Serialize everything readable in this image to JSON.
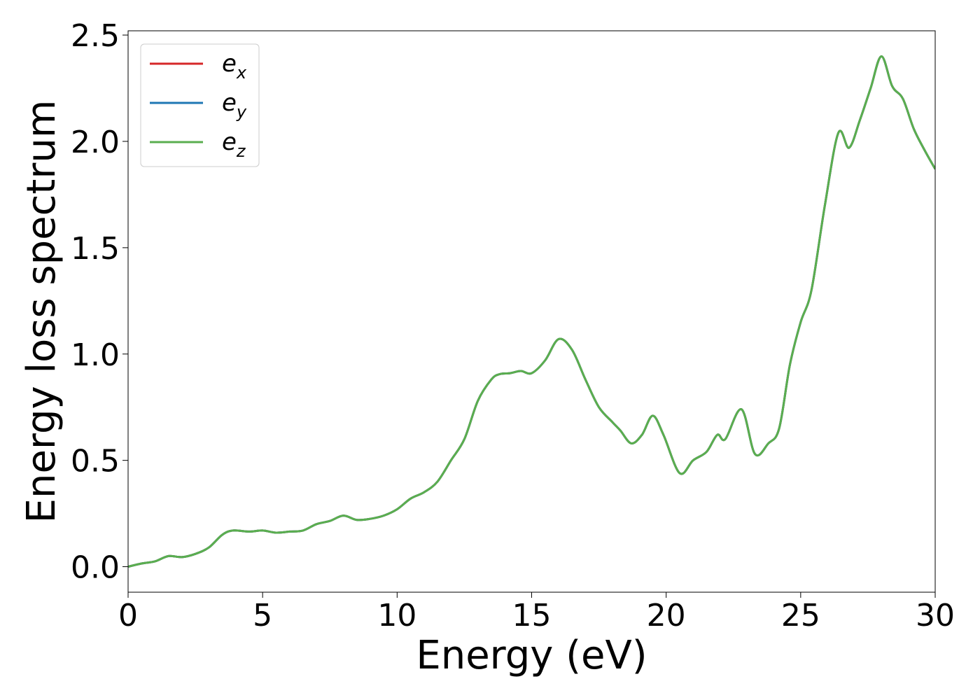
{
  "chart_data": {
    "type": "line",
    "xlabel": "Energy (eV)",
    "ylabel": "Energy loss spectrum",
    "xlim": [
      0,
      30
    ],
    "ylim": [
      -0.12,
      2.52
    ],
    "xticks": [
      0,
      5,
      10,
      15,
      20,
      25,
      30
    ],
    "yticks": [
      0.0,
      0.5,
      1.0,
      1.5,
      2.0,
      2.5
    ],
    "xtick_labels": [
      "0",
      "5",
      "10",
      "15",
      "20",
      "25",
      "30"
    ],
    "ytick_labels": [
      "0.0",
      "0.5",
      "1.0",
      "1.5",
      "2.0",
      "2.5"
    ],
    "grid": false,
    "legend_position": "top-left",
    "series": [
      {
        "name_base": "e",
        "name_sub": "x",
        "color": "#d62728",
        "x": [
          0,
          0.5,
          1,
          1.5,
          2,
          2.5,
          3,
          3.5,
          3.9,
          4.5,
          5,
          5.5,
          6,
          6.5,
          7,
          7.5,
          8,
          8.5,
          9,
          9.5,
          10,
          10.5,
          11,
          11.5,
          12,
          12.5,
          13,
          13.5,
          13.8,
          14.2,
          14.6,
          15,
          15.5,
          16,
          16.5,
          17,
          17.5,
          18,
          18.3,
          18.7,
          19.1,
          19.5,
          19.9,
          20.5,
          21,
          21.5,
          21.9,
          22.2,
          22.8,
          23.3,
          23.8,
          24.2,
          24.6,
          25,
          25.4,
          25.9,
          26.4,
          26.8,
          27.2,
          27.6,
          28,
          28.4,
          28.8,
          29.2,
          29.6,
          30
        ],
        "y": [
          0,
          0.015,
          0.025,
          0.05,
          0.045,
          0.06,
          0.09,
          0.15,
          0.17,
          0.165,
          0.17,
          0.16,
          0.165,
          0.17,
          0.2,
          0.215,
          0.24,
          0.22,
          0.225,
          0.24,
          0.27,
          0.32,
          0.35,
          0.4,
          0.5,
          0.6,
          0.78,
          0.88,
          0.905,
          0.91,
          0.92,
          0.91,
          0.97,
          1.07,
          1.02,
          0.88,
          0.75,
          0.68,
          0.64,
          0.58,
          0.62,
          0.71,
          0.62,
          0.44,
          0.5,
          0.54,
          0.62,
          0.6,
          0.74,
          0.53,
          0.58,
          0.65,
          0.95,
          1.15,
          1.3,
          1.7,
          2.04,
          1.97,
          2.1,
          2.25,
          2.4,
          2.26,
          2.2,
          2.06,
          1.96,
          1.87
        ]
      },
      {
        "name_base": "e",
        "name_sub": "y",
        "color": "#1f77b4",
        "x": [
          0,
          0.5,
          1,
          1.5,
          2,
          2.5,
          3,
          3.5,
          3.9,
          4.5,
          5,
          5.5,
          6,
          6.5,
          7,
          7.5,
          8,
          8.5,
          9,
          9.5,
          10,
          10.5,
          11,
          11.5,
          12,
          12.5,
          13,
          13.5,
          13.8,
          14.2,
          14.6,
          15,
          15.5,
          16,
          16.5,
          17,
          17.5,
          18,
          18.3,
          18.7,
          19.1,
          19.5,
          19.9,
          20.5,
          21,
          21.5,
          21.9,
          22.2,
          22.8,
          23.3,
          23.8,
          24.2,
          24.6,
          25,
          25.4,
          25.9,
          26.4,
          26.8,
          27.2,
          27.6,
          28,
          28.4,
          28.8,
          29.2,
          29.6,
          30
        ],
        "y": [
          0,
          0.015,
          0.025,
          0.05,
          0.045,
          0.06,
          0.09,
          0.15,
          0.17,
          0.165,
          0.17,
          0.16,
          0.165,
          0.17,
          0.2,
          0.215,
          0.24,
          0.22,
          0.225,
          0.24,
          0.27,
          0.32,
          0.35,
          0.4,
          0.5,
          0.6,
          0.78,
          0.88,
          0.905,
          0.91,
          0.92,
          0.91,
          0.97,
          1.07,
          1.02,
          0.88,
          0.75,
          0.68,
          0.64,
          0.58,
          0.62,
          0.71,
          0.62,
          0.44,
          0.5,
          0.54,
          0.62,
          0.6,
          0.74,
          0.53,
          0.58,
          0.65,
          0.95,
          1.15,
          1.3,
          1.7,
          2.04,
          1.97,
          2.1,
          2.25,
          2.4,
          2.26,
          2.2,
          2.06,
          1.96,
          1.87
        ]
      },
      {
        "name_base": "e",
        "name_sub": "z",
        "color": "#5aae4f",
        "x": [
          0,
          0.5,
          1,
          1.5,
          2,
          2.5,
          3,
          3.5,
          3.9,
          4.5,
          5,
          5.5,
          6,
          6.5,
          7,
          7.5,
          8,
          8.5,
          9,
          9.5,
          10,
          10.5,
          11,
          11.5,
          12,
          12.5,
          13,
          13.5,
          13.8,
          14.2,
          14.6,
          15,
          15.5,
          16,
          16.5,
          17,
          17.5,
          18,
          18.3,
          18.7,
          19.1,
          19.5,
          19.9,
          20.5,
          21,
          21.5,
          21.9,
          22.2,
          22.8,
          23.3,
          23.8,
          24.2,
          24.6,
          25,
          25.4,
          25.9,
          26.4,
          26.8,
          27.2,
          27.6,
          28,
          28.4,
          28.8,
          29.2,
          29.6,
          30
        ],
        "y": [
          0,
          0.015,
          0.025,
          0.05,
          0.045,
          0.06,
          0.09,
          0.15,
          0.17,
          0.165,
          0.17,
          0.16,
          0.165,
          0.17,
          0.2,
          0.215,
          0.24,
          0.22,
          0.225,
          0.24,
          0.27,
          0.32,
          0.35,
          0.4,
          0.5,
          0.6,
          0.78,
          0.88,
          0.905,
          0.91,
          0.92,
          0.91,
          0.97,
          1.07,
          1.02,
          0.88,
          0.75,
          0.68,
          0.64,
          0.58,
          0.62,
          0.71,
          0.62,
          0.44,
          0.5,
          0.54,
          0.62,
          0.6,
          0.74,
          0.53,
          0.58,
          0.65,
          0.95,
          1.15,
          1.3,
          1.7,
          2.04,
          1.97,
          2.1,
          2.25,
          2.4,
          2.26,
          2.2,
          2.06,
          1.96,
          1.87
        ]
      }
    ]
  }
}
